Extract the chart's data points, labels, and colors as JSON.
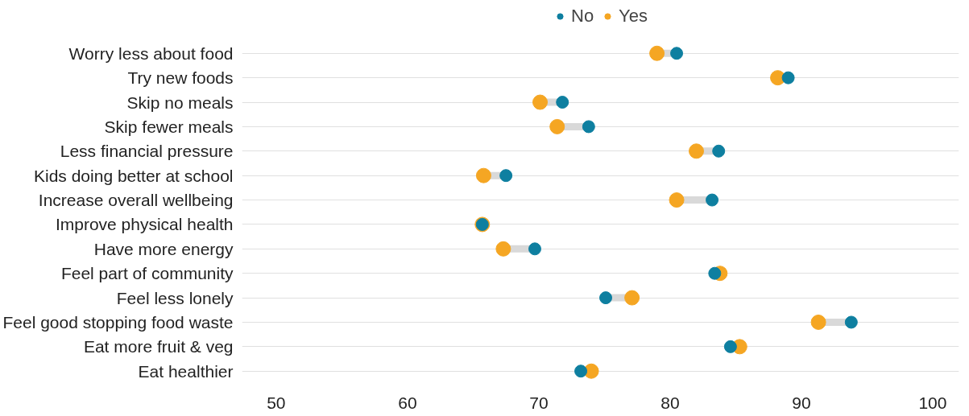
{
  "chart_data": {
    "type": "scatter",
    "categories": [
      "Worry less about food",
      "Try new foods",
      "Skip no meals",
      "Skip fewer meals",
      "Less financial pressure",
      "Kids doing better at school",
      "Increase overall wellbeing",
      "Improve physical health",
      "Have more energy",
      "Feel part of community",
      "Feel less lonely",
      "Feel good stopping food waste",
      "Eat more fruit & veg",
      "Eat healthier"
    ],
    "orientation": "horizontal",
    "series": [
      {
        "name": "No",
        "color": "#0e7fa0",
        "values": [
          80.5,
          89.0,
          71.8,
          73.8,
          83.7,
          67.5,
          83.2,
          65.7,
          69.7,
          83.4,
          75.1,
          93.8,
          84.6,
          73.2
        ]
      },
      {
        "name": "Yes",
        "color": "#f5a623",
        "values": [
          79.0,
          88.2,
          70.1,
          71.4,
          82.0,
          65.8,
          80.5,
          65.7,
          67.3,
          83.8,
          77.1,
          91.3,
          85.3,
          74.0
        ]
      }
    ],
    "xlim": [
      47.4,
      102
    ],
    "xticks": [
      50,
      60,
      70,
      80,
      90,
      100
    ],
    "grid": "y",
    "legend": "top",
    "marker": "circle"
  }
}
